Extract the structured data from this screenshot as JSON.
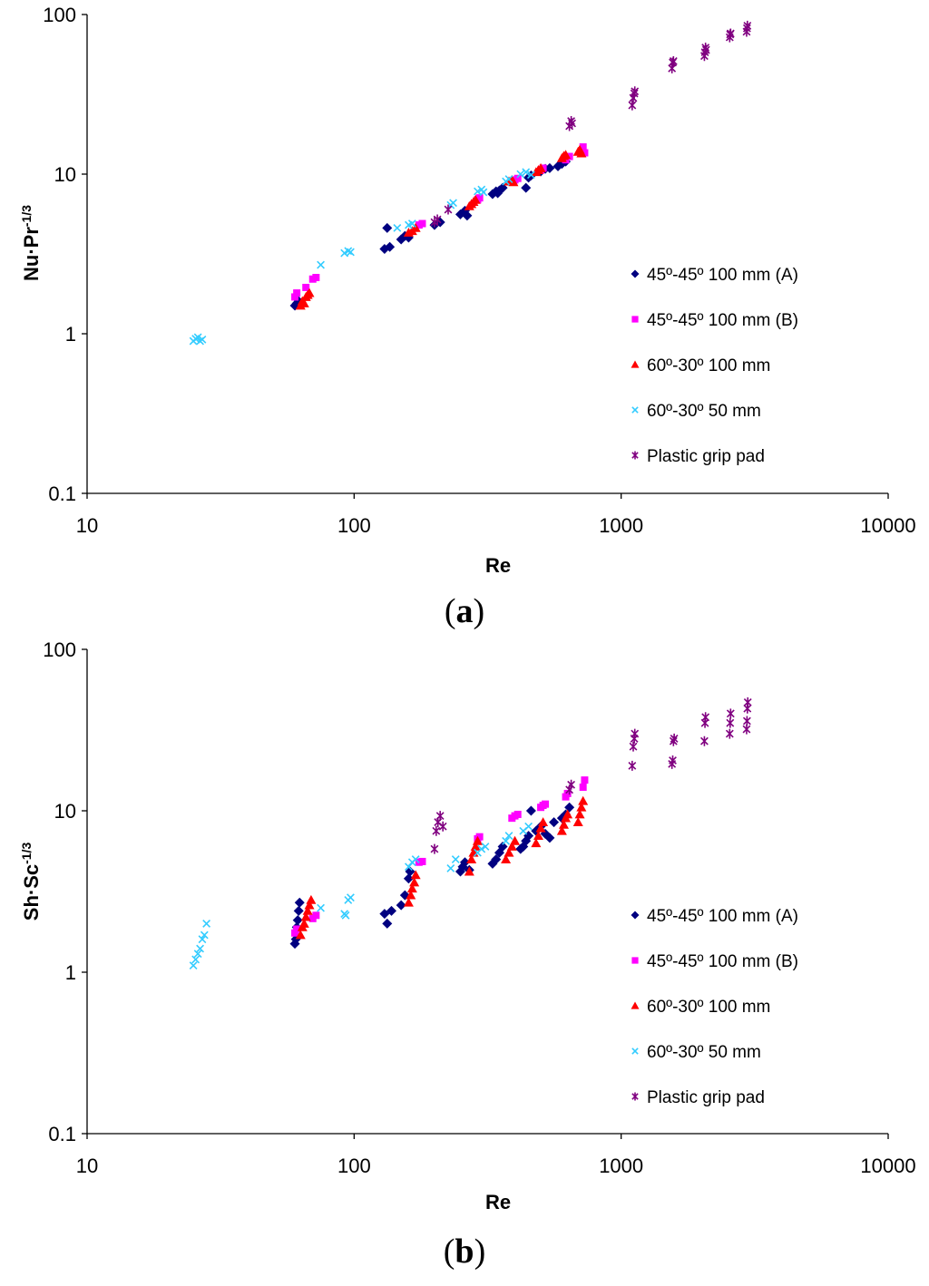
{
  "chart_data": [
    {
      "type": "scatter",
      "panel_label": "a",
      "xlabel": "Re",
      "ylabel_base": "Nu·Pr",
      "ylabel_exp": "-1/3",
      "x_scale": "log",
      "y_scale": "log",
      "xlim": [
        10,
        10000
      ],
      "ylim": [
        0.1,
        100
      ],
      "x_ticks": [
        "10",
        "100",
        "1000",
        "10000"
      ],
      "y_ticks": [
        "0.1",
        "1",
        "10",
        "100"
      ],
      "grid": false,
      "legend_position": "lower-right",
      "series": [
        {
          "name": "45º-45º 100 mm (A)",
          "marker": "diamond",
          "color": "#000080",
          "points": [
            [
              60,
              1.5
            ],
            [
              61,
              1.55
            ],
            [
              62,
              1.6
            ],
            [
              130,
              3.4
            ],
            [
              133,
              4.6
            ],
            [
              136,
              3.5
            ],
            [
              150,
              3.9
            ],
            [
              155,
              4.1
            ],
            [
              160,
              4.0
            ],
            [
              200,
              4.8
            ],
            [
              210,
              5.0
            ],
            [
              250,
              5.6
            ],
            [
              260,
              5.9
            ],
            [
              265,
              5.5
            ],
            [
              330,
              7.5
            ],
            [
              340,
              7.8
            ],
            [
              345,
              7.6
            ],
            [
              350,
              7.9
            ],
            [
              360,
              8.2
            ],
            [
              440,
              8.2
            ],
            [
              450,
              9.5
            ],
            [
              460,
              9.8
            ],
            [
              500,
              10.4
            ],
            [
              520,
              10.8
            ],
            [
              540,
              10.9
            ],
            [
              580,
              11.2
            ],
            [
              600,
              11.6
            ],
            [
              620,
              12.0
            ]
          ]
        },
        {
          "name": "45º-45º 100 mm (B)",
          "marker": "square",
          "color": "#ff00ff",
          "points": [
            [
              60,
              1.7
            ],
            [
              61,
              1.8
            ],
            [
              66,
              1.95
            ],
            [
              70,
              2.2
            ],
            [
              72,
              2.25
            ],
            [
              175,
              4.8
            ],
            [
              180,
              4.9
            ],
            [
              290,
              6.9
            ],
            [
              295,
              7.1
            ],
            [
              400,
              9.2
            ],
            [
              410,
              9.4
            ],
            [
              500,
              10.6
            ],
            [
              510,
              10.9
            ],
            [
              620,
              12.3
            ],
            [
              640,
              12.9
            ],
            [
              720,
              14.8
            ],
            [
              730,
              13.6
            ]
          ]
        },
        {
          "name": "60º-30º 100 mm",
          "marker": "triangle",
          "color": "#ff0000",
          "points": [
            [
              63,
              1.5
            ],
            [
              64,
              1.6
            ],
            [
              65,
              1.55
            ],
            [
              66,
              1.7
            ],
            [
              67,
              1.75
            ],
            [
              68,
              1.8
            ],
            [
              160,
              4.3
            ],
            [
              165,
              4.4
            ],
            [
              170,
              4.6
            ],
            [
              270,
              6.3
            ],
            [
              275,
              6.5
            ],
            [
              280,
              6.7
            ],
            [
              285,
              6.9
            ],
            [
              380,
              9.0
            ],
            [
              390,
              9.2
            ],
            [
              395,
              8.9
            ],
            [
              480,
              10.3
            ],
            [
              490,
              10.6
            ],
            [
              500,
              10.9
            ],
            [
              600,
              12.6
            ],
            [
              610,
              13.0
            ],
            [
              620,
              13.2
            ],
            [
              690,
              13.8
            ],
            [
              700,
              14.2
            ],
            [
              710,
              13.5
            ]
          ]
        },
        {
          "name": "60º-30º 50 mm",
          "marker": "cross",
          "color": "#33ccff",
          "points": [
            [
              25,
              0.9
            ],
            [
              26,
              0.95
            ],
            [
              27,
              0.92
            ],
            [
              25.5,
              0.93
            ],
            [
              26.5,
              0.9
            ],
            [
              75,
              2.7
            ],
            [
              92,
              3.2
            ],
            [
              95,
              3.3
            ],
            [
              97,
              3.25
            ],
            [
              145,
              4.6
            ],
            [
              160,
              4.8
            ],
            [
              165,
              4.9
            ],
            [
              230,
              6.4
            ],
            [
              235,
              6.6
            ],
            [
              290,
              7.8
            ],
            [
              300,
              8.0
            ],
            [
              305,
              7.7
            ],
            [
              370,
              9.0
            ],
            [
              380,
              9.3
            ],
            [
              420,
              10.0
            ],
            [
              440,
              10.3
            ],
            [
              460,
              9.9
            ]
          ]
        },
        {
          "name": "Plastic grip pad",
          "marker": "star",
          "color": "#800080",
          "points": [
            [
              200,
              5.0
            ],
            [
              205,
              5.2
            ],
            [
              225,
              6.0
            ],
            [
              640,
              20.0
            ],
            [
              650,
              21.5
            ],
            [
              655,
              20.8
            ],
            [
              1100,
              27.0
            ],
            [
              1110,
              30.0
            ],
            [
              1120,
              32.0
            ],
            [
              1125,
              33.0
            ],
            [
              1550,
              46.0
            ],
            [
              1560,
              50.0
            ],
            [
              1570,
              51.0
            ],
            [
              2050,
              55.0
            ],
            [
              2060,
              58.0
            ],
            [
              2070,
              62.0
            ],
            [
              2080,
              60.0
            ],
            [
              2550,
              72.0
            ],
            [
              2560,
              75.0
            ],
            [
              2570,
              76.0
            ],
            [
              2950,
              78.0
            ],
            [
              2960,
              82.0
            ],
            [
              2970,
              85.0
            ]
          ]
        }
      ]
    },
    {
      "type": "scatter",
      "panel_label": "b",
      "xlabel": "Re",
      "ylabel_base": "Sh·Sc",
      "ylabel_exp": "-1/3",
      "x_scale": "log",
      "y_scale": "log",
      "xlim": [
        10,
        10000
      ],
      "ylim": [
        0.1,
        100
      ],
      "x_ticks": [
        "10",
        "100",
        "1000",
        "10000"
      ],
      "y_ticks": [
        "0.1",
        "1",
        "10",
        "100"
      ],
      "grid": false,
      "legend_position": "lower-right",
      "series": [
        {
          "name": "45º-45º 100 mm (A)",
          "marker": "diamond",
          "color": "#000080",
          "points": [
            [
              60,
              1.5
            ],
            [
              60.5,
              1.6
            ],
            [
              61,
              1.9
            ],
            [
              61.5,
              2.1
            ],
            [
              62,
              2.4
            ],
            [
              62.5,
              2.7
            ],
            [
              130,
              2.3
            ],
            [
              133,
              2.0
            ],
            [
              138,
              2.4
            ],
            [
              150,
              2.6
            ],
            [
              155,
              3.0
            ],
            [
              160,
              3.8
            ],
            [
              162,
              4.2
            ],
            [
              250,
              4.2
            ],
            [
              255,
              4.5
            ],
            [
              260,
              4.8
            ],
            [
              270,
              4.3
            ],
            [
              330,
              4.7
            ],
            [
              340,
              5.0
            ],
            [
              350,
              5.5
            ],
            [
              360,
              6.0
            ],
            [
              420,
              5.8
            ],
            [
              430,
              6.0
            ],
            [
              440,
              6.5
            ],
            [
              450,
              7.0
            ],
            [
              460,
              10.0
            ],
            [
              480,
              7.5
            ],
            [
              500,
              8.0
            ],
            [
              520,
              7.2
            ],
            [
              540,
              6.8
            ],
            [
              560,
              8.5
            ],
            [
              600,
              9.0
            ],
            [
              620,
              9.5
            ],
            [
              640,
              10.5
            ]
          ]
        },
        {
          "name": "45º-45º 100 mm (B)",
          "marker": "square",
          "color": "#ff00ff",
          "points": [
            [
              60,
              1.75
            ],
            [
              61,
              1.85
            ],
            [
              70,
              2.15
            ],
            [
              72,
              2.25
            ],
            [
              175,
              4.8
            ],
            [
              180,
              4.85
            ],
            [
              290,
              6.7
            ],
            [
              295,
              6.9
            ],
            [
              390,
              9.0
            ],
            [
              400,
              9.3
            ],
            [
              410,
              9.5
            ],
            [
              500,
              10.5
            ],
            [
              510,
              10.8
            ],
            [
              520,
              11.0
            ],
            [
              620,
              12.2
            ],
            [
              630,
              12.8
            ],
            [
              720,
              14.0
            ],
            [
              730,
              15.5
            ]
          ]
        },
        {
          "name": "60º-30º 100 mm",
          "marker": "triangle",
          "color": "#ff0000",
          "points": [
            [
              63,
              1.7
            ],
            [
              64,
              1.9
            ],
            [
              65,
              2.0
            ],
            [
              66,
              2.2
            ],
            [
              67,
              2.4
            ],
            [
              68,
              2.6
            ],
            [
              69,
              2.8
            ],
            [
              160,
              2.7
            ],
            [
              163,
              3.0
            ],
            [
              165,
              3.3
            ],
            [
              168,
              3.6
            ],
            [
              170,
              4.0
            ],
            [
              270,
              4.2
            ],
            [
              275,
              5.0
            ],
            [
              280,
              5.5
            ],
            [
              285,
              6.0
            ],
            [
              290,
              6.5
            ],
            [
              370,
              5.0
            ],
            [
              380,
              5.5
            ],
            [
              390,
              6.0
            ],
            [
              400,
              6.5
            ],
            [
              480,
              6.3
            ],
            [
              490,
              7.0
            ],
            [
              500,
              7.8
            ],
            [
              510,
              8.5
            ],
            [
              600,
              7.5
            ],
            [
              610,
              8.2
            ],
            [
              620,
              9.0
            ],
            [
              630,
              9.5
            ],
            [
              690,
              8.5
            ],
            [
              700,
              9.5
            ],
            [
              710,
              10.5
            ],
            [
              720,
              11.5
            ]
          ]
        },
        {
          "name": "60º-30º 50 mm",
          "marker": "cross",
          "color": "#33ccff",
          "points": [
            [
              25,
              1.1
            ],
            [
              25.5,
              1.2
            ],
            [
              26,
              1.3
            ],
            [
              26.5,
              1.4
            ],
            [
              27,
              1.6
            ],
            [
              27.5,
              1.7
            ],
            [
              28,
              2.0
            ],
            [
              75,
              2.5
            ],
            [
              92,
              2.3
            ],
            [
              93,
              2.25
            ],
            [
              95,
              2.8
            ],
            [
              97,
              2.9
            ],
            [
              160,
              4.5
            ],
            [
              165,
              4.8
            ],
            [
              170,
              5.0
            ],
            [
              230,
              4.4
            ],
            [
              240,
              5.0
            ],
            [
              290,
              5.5
            ],
            [
              300,
              5.8
            ],
            [
              310,
              6.0
            ],
            [
              370,
              6.5
            ],
            [
              380,
              7.0
            ],
            [
              430,
              7.5
            ],
            [
              450,
              8.0
            ]
          ]
        },
        {
          "name": "Plastic grip pad",
          "marker": "star",
          "color": "#800080",
          "points": [
            [
              200,
              5.8
            ],
            [
              203,
              7.5
            ],
            [
              206,
              8.5
            ],
            [
              210,
              9.3
            ],
            [
              215,
              8.0
            ],
            [
              640,
              13.5
            ],
            [
              650,
              14.5
            ],
            [
              1100,
              19.0
            ],
            [
              1110,
              25.0
            ],
            [
              1120,
              28.0
            ],
            [
              1125,
              30.0
            ],
            [
              1550,
              19.5
            ],
            [
              1560,
              20.5
            ],
            [
              1570,
              27.0
            ],
            [
              1580,
              28.0
            ],
            [
              2050,
              27.0
            ],
            [
              2060,
              35.0
            ],
            [
              2070,
              38.0
            ],
            [
              2550,
              30.0
            ],
            [
              2560,
              35.0
            ],
            [
              2570,
              40.0
            ],
            [
              2950,
              32.0
            ],
            [
              2960,
              36.0
            ],
            [
              2970,
              43.0
            ],
            [
              2980,
              47.0
            ]
          ]
        }
      ]
    }
  ]
}
